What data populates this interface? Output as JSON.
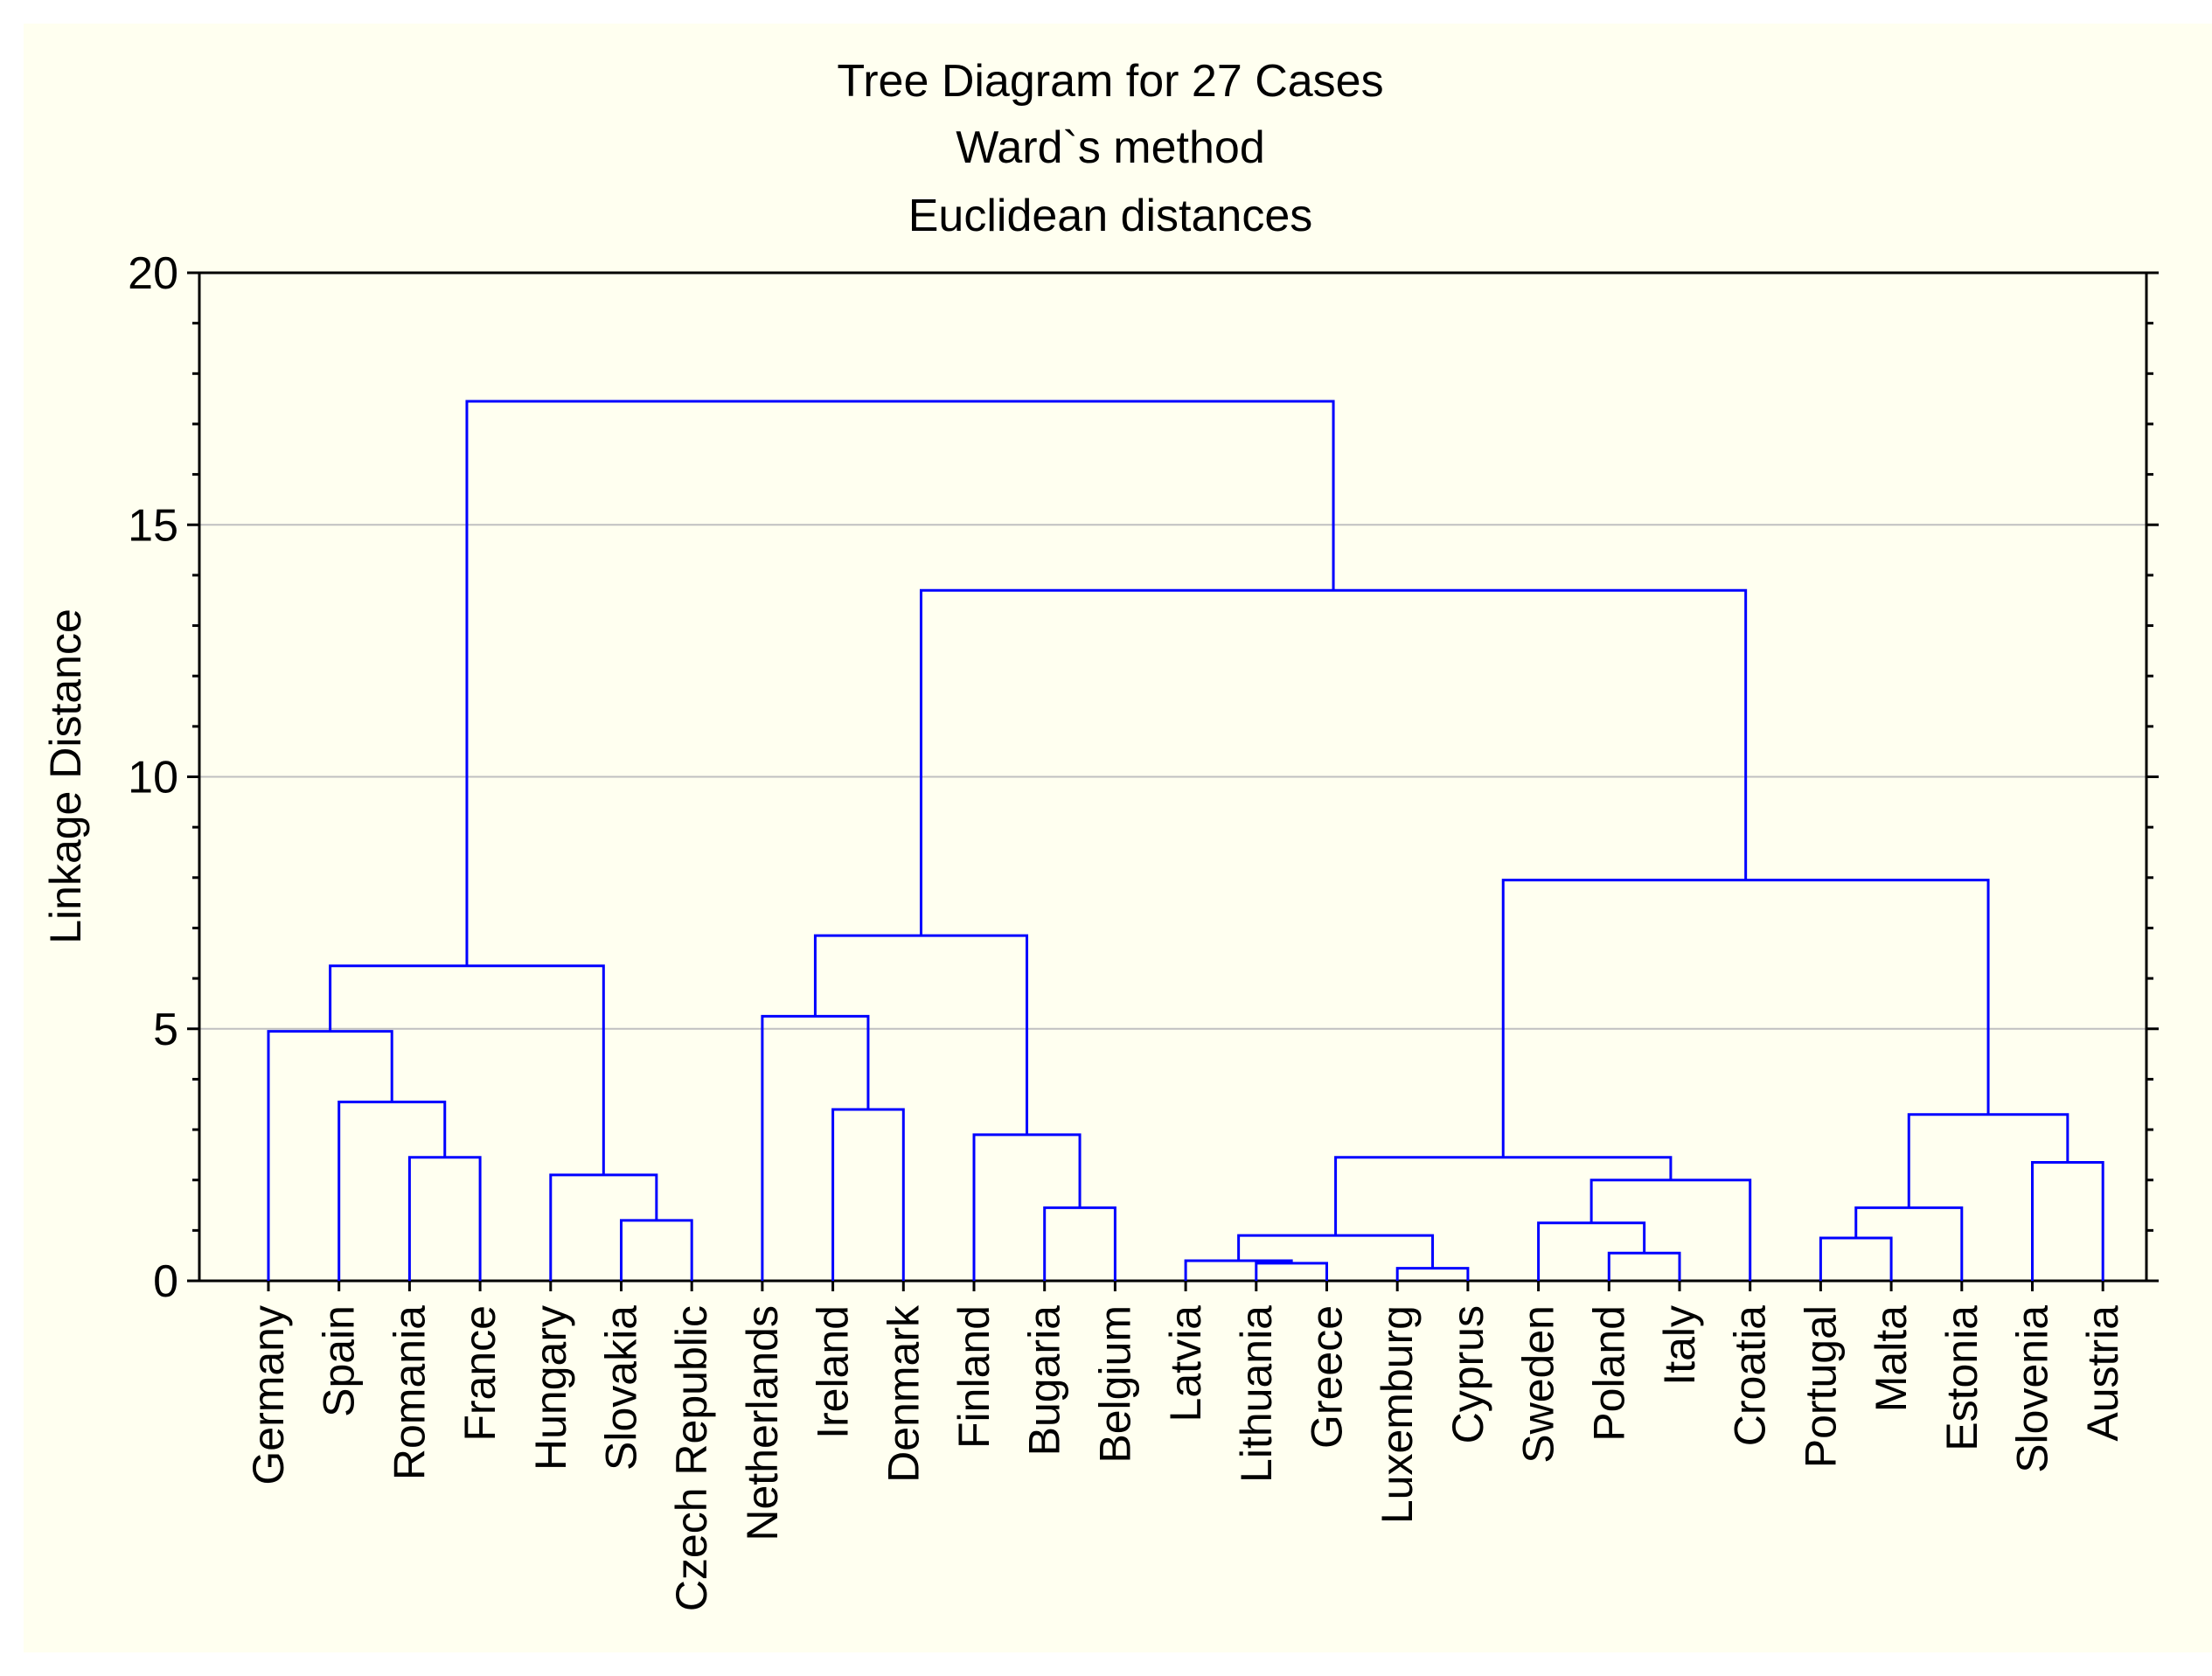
{
  "chart_data": {
    "type": "dendrogram",
    "title": "Tree Diagram for 27 Cases",
    "subtitle": "Ward`s method",
    "subtitle2": "Euclidean distances",
    "ylabel": "Linkage Distance",
    "xlabel": "",
    "ylim": [
      0,
      20
    ],
    "yticks": [
      0,
      5,
      10,
      15,
      20
    ],
    "grid": true,
    "colors": {
      "links": "#0000ff",
      "background": "#fffff0",
      "grid": "#c0c0c0",
      "axis": "#000000"
    },
    "leaves": [
      "Germany",
      "Spain",
      "Romania",
      "France",
      "Hungary",
      "Slovakia",
      "Czech Republic",
      "Netherlands",
      "Ireland",
      "Denmark",
      "Finland",
      "Bugaria",
      "Belgium",
      "Latvia",
      "Lithuania",
      "Greece",
      "Luxemburg",
      "Cyprus",
      "Sweden",
      "Poland",
      "Italy",
      "Croatia",
      "Portugal",
      "Malta",
      "Estonia",
      "Slovenia",
      "Austria"
    ],
    "merges": [
      {
        "left": "L2",
        "right": "L3",
        "height": 2.45
      },
      {
        "left": "L1",
        "right": "N0",
        "height": 3.55
      },
      {
        "left": "L0",
        "right": "N1",
        "height": 4.95
      },
      {
        "left": "L5",
        "right": "L6",
        "height": 1.2
      },
      {
        "left": "L4",
        "right": "N3",
        "height": 2.1
      },
      {
        "left": "N2",
        "right": "N4",
        "height": 6.25
      },
      {
        "left": "L8",
        "right": "L9",
        "height": 3.4
      },
      {
        "left": "L7",
        "right": "N6",
        "height": 5.25
      },
      {
        "left": "L11",
        "right": "L12",
        "height": 1.45
      },
      {
        "left": "L10",
        "right": "N8",
        "height": 2.9
      },
      {
        "left": "N7",
        "right": "N9",
        "height": 6.85
      },
      {
        "left": "L14",
        "right": "L15",
        "height": 0.35
      },
      {
        "left": "L13",
        "right": "N11",
        "height": 0.4
      },
      {
        "left": "L16",
        "right": "L17",
        "height": 0.25
      },
      {
        "left": "N12",
        "right": "N13",
        "height": 0.9
      },
      {
        "left": "L19",
        "right": "L20",
        "height": 0.55
      },
      {
        "left": "L18",
        "right": "N15",
        "height": 1.15
      },
      {
        "left": "N16",
        "right": "L21",
        "height": 2.0
      },
      {
        "left": "N14",
        "right": "N17",
        "height": 2.45
      },
      {
        "left": "L22",
        "right": "L23",
        "height": 0.85
      },
      {
        "left": "N19",
        "right": "L24",
        "height": 1.45
      },
      {
        "left": "L25",
        "right": "L26",
        "height": 2.35
      },
      {
        "left": "N20",
        "right": "N21",
        "height": 3.3
      },
      {
        "left": "N18",
        "right": "N22",
        "height": 7.95
      },
      {
        "left": "N10",
        "right": "N23",
        "height": 13.7
      },
      {
        "left": "N5",
        "right": "N24",
        "height": 17.45
      }
    ]
  }
}
